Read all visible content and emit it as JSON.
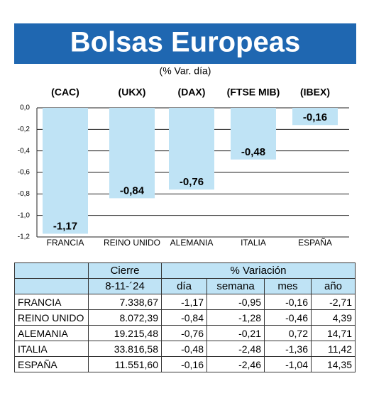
{
  "chart_data": {
    "type": "bar",
    "title": "Bolsas Europeas",
    "subtitle": "(% Var. día)",
    "categories": [
      "FRANCIA",
      "REINO UNIDO",
      "ALEMANIA",
      "ITALIA",
      "ESPAÑA"
    ],
    "index_labels": [
      "(CAC)",
      "(UKX)",
      "(DAX)",
      "(FTSE MIB)",
      "(IBEX)"
    ],
    "values": [
      -1.17,
      -0.84,
      -0.76,
      -0.48,
      -0.16
    ],
    "value_labels": [
      "-1,17",
      "-0,84",
      "-0,76",
      "-0,48",
      "-0,16"
    ],
    "color": "#bfe3f5",
    "ylim": [
      -1.2,
      0
    ],
    "yticks": [
      {
        "value": 0,
        "label": "0,0"
      },
      {
        "value": -0.2,
        "label": "-0,2"
      },
      {
        "value": -0.4,
        "label": "-0,4"
      },
      {
        "value": -0.6,
        "label": "-0,6"
      },
      {
        "value": -0.8,
        "label": "-0,8"
      },
      {
        "value": -1.0,
        "label": "-1,0"
      },
      {
        "value": -1.2,
        "label": "-1,2"
      }
    ],
    "grid": true
  },
  "table": {
    "group_headers": [
      "Cierre",
      "% Variación"
    ],
    "columns": [
      "8-11-´24",
      "día",
      "semana",
      "mes",
      "año"
    ],
    "rows": [
      [
        "FRANCIA",
        "7.338,67",
        "-1,17",
        "-0,95",
        "-0,16",
        "-2,71"
      ],
      [
        "REINO UNIDO",
        "8.072,39",
        "-0,84",
        "-1,28",
        "-0,46",
        "4,39"
      ],
      [
        "ALEMANIA",
        "19.215,48",
        "-0,76",
        "-0,21",
        "0,72",
        "14,71"
      ],
      [
        "ITALIA",
        "33.816,58",
        "-0,48",
        "-2,48",
        "-1,36",
        "11,42"
      ],
      [
        "ESPAÑA",
        "11.551,60",
        "-0,16",
        "-2,46",
        "-1,04",
        "14,35"
      ]
    ]
  }
}
